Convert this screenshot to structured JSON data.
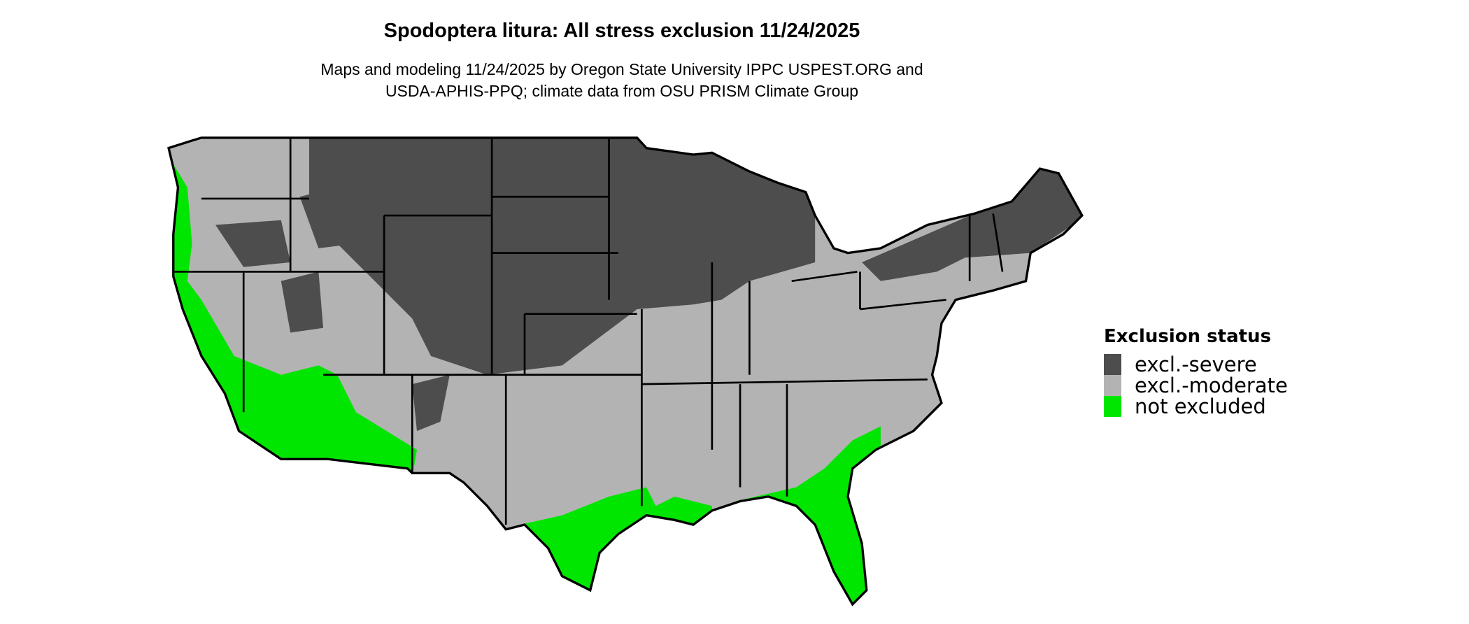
{
  "title": "Spodoptera litura: All stress exclusion 11/24/2025",
  "subtitle_lines": [
    "Maps and modeling 11/24/2025 by Oregon State University IPPC USPEST.ORG and",
    "USDA-APHIS-PPQ; climate data from OSU PRISM Climate Group"
  ],
  "map": {
    "region": "Contiguous United States",
    "state_boundaries": true
  },
  "legend": {
    "title": "Exclusion status",
    "placement": "right",
    "items": [
      {
        "label": "excl.-severe",
        "color": "#4d4d4d"
      },
      {
        "label": "excl.-moderate",
        "color": "#b3b3b3"
      },
      {
        "label": "not excluded",
        "color": "#00e600"
      }
    ]
  }
}
